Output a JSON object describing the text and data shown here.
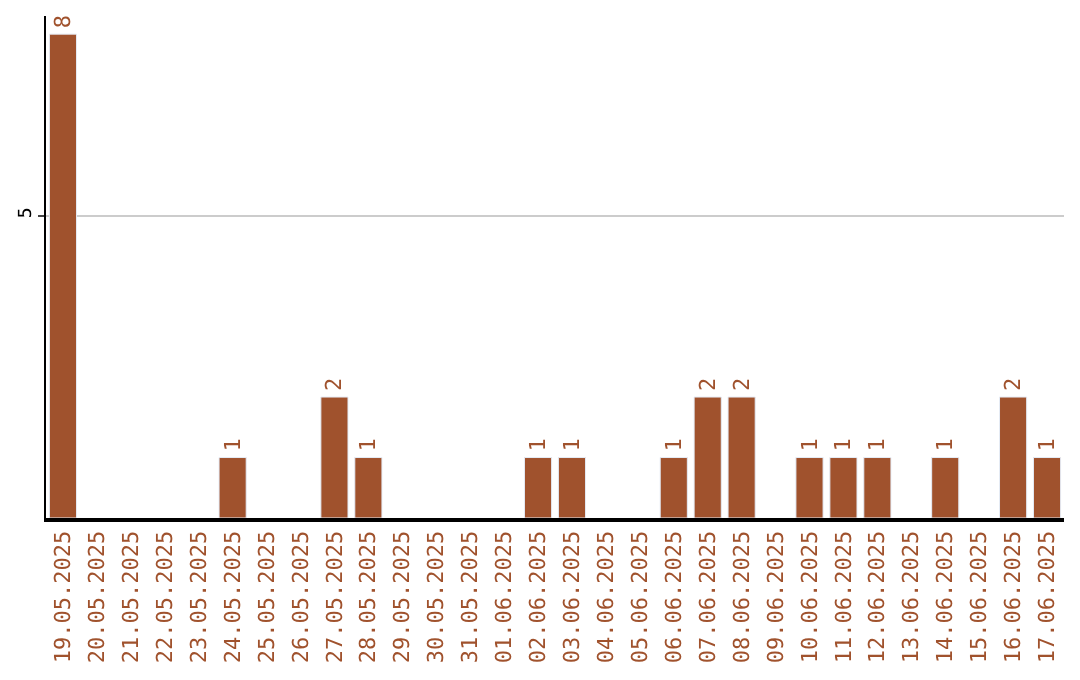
{
  "chart_data": {
    "type": "bar",
    "categories": [
      "19.05.2025",
      "20.05.2025",
      "21.05.2025",
      "22.05.2025",
      "23.05.2025",
      "24.05.2025",
      "25.05.2025",
      "26.05.2025",
      "27.05.2025",
      "28.05.2025",
      "29.05.2025",
      "30.05.2025",
      "31.05.2025",
      "01.06.2025",
      "02.06.2025",
      "03.06.2025",
      "04.06.2025",
      "05.06.2025",
      "06.06.2025",
      "07.06.2025",
      "08.06.2025",
      "09.06.2025",
      "10.06.2025",
      "11.06.2025",
      "12.06.2025",
      "13.06.2025",
      "14.06.2025",
      "15.06.2025",
      "16.06.2025",
      "17.06.2025"
    ],
    "values": [
      8,
      null,
      null,
      null,
      null,
      1,
      null,
      null,
      2,
      1,
      null,
      null,
      null,
      null,
      1,
      1,
      null,
      null,
      1,
      2,
      2,
      null,
      1,
      1,
      1,
      null,
      1,
      null,
      2,
      1
    ],
    "value_labels": [
      "8",
      null,
      null,
      null,
      null,
      "1",
      null,
      null,
      "2",
      "1",
      null,
      null,
      null,
      null,
      "1",
      "1",
      null,
      null,
      "1",
      "2",
      "2",
      null,
      "1",
      "1",
      "1",
      null,
      "1",
      null,
      "2",
      "1"
    ],
    "color": "#a0522d",
    "ylim": [
      0,
      8.3
    ],
    "yticks": [
      5
    ],
    "grid": "y",
    "legend": false
  }
}
